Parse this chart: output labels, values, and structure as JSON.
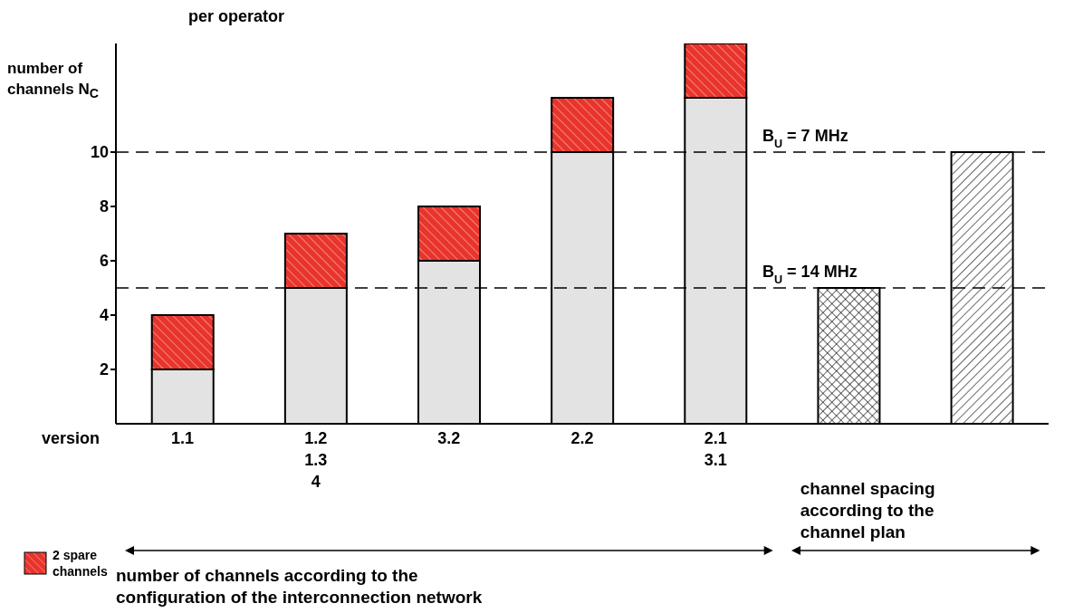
{
  "chart_data": {
    "type": "bar",
    "title": "per operator",
    "xlabel": "version",
    "ylabel": "number of channels N$_{C}$",
    "categories": [
      "1.1",
      "1.2\n1.3\n4",
      "3.2",
      "2.2",
      "2.1\n3.1",
      null,
      null
    ],
    "series": [
      {
        "color": "#e3e3e3",
        "values": [
          2,
          5,
          6,
          10,
          12,
          null,
          null
        ]
      },
      {
        "name": "2 spare channels",
        "color": "#e8342c",
        "values": [
          2,
          2,
          2,
          2,
          2,
          null,
          null
        ]
      },
      {
        "color": "#ffffff",
        "values": [
          null,
          null,
          null,
          null,
          null,
          5,
          10
        ]
      }
    ],
    "stacked": true,
    "ylim": [
      0,
      14
    ],
    "yticks": [
      2,
      4,
      6,
      8,
      10
    ],
    "grid": false,
    "legend": "bottom left",
    "ref_lines": [
      {
        "axis": "y",
        "value": 10,
        "line_style": "dashed"
      },
      {
        "axis": "y",
        "value": 5,
        "line_style": "dashed"
      }
    ],
    "annotations": [
      "number of channels according to the configuration of the interconnection network",
      "channel spacing according to the channel plan",
      {
        "text": "B$_{U}$ = 7 MHz",
        "y": 10
      },
      {
        "text": "B$_{U}$ = 14 MHz",
        "y": 5
      }
    ]
  }
}
